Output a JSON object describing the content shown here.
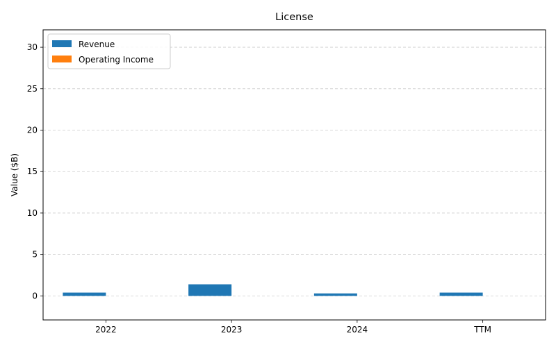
{
  "chart_data": {
    "type": "bar",
    "title": "License",
    "xlabel": "",
    "ylabel": "Value ($B)",
    "categories": [
      "2022",
      "2023",
      "2024",
      "TTM"
    ],
    "series": [
      {
        "name": "Revenue",
        "color": "#1f77b4",
        "values": [
          0.4,
          1.4,
          0.3,
          0.4
        ]
      },
      {
        "name": "Operating Income",
        "color": "#ff7f0e",
        "values": [
          0,
          0,
          0,
          0
        ]
      }
    ],
    "ylim": [
      -2.9,
      32.1
    ],
    "yticks": [
      0,
      5,
      10,
      15,
      20,
      25,
      30
    ],
    "grid": "y-dashed",
    "legend_position": "top-left"
  }
}
